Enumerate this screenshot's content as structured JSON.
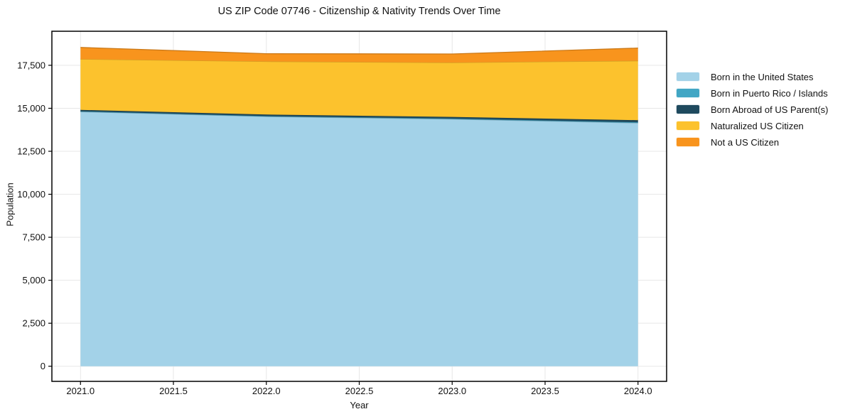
{
  "chart_data": {
    "type": "area",
    "stacked": true,
    "title": "US ZIP Code 07746 - Citizenship & Nativity Trends Over Time",
    "xlabel": "Year",
    "ylabel": "Population",
    "x": [
      2021,
      2022,
      2023,
      2024
    ],
    "series": [
      {
        "name": "Born in the United States",
        "color": "#a3d2e8",
        "values": [
          14800,
          14520,
          14370,
          14150
        ]
      },
      {
        "name": "Born in Puerto Rico / Islands",
        "color": "#41a6c4",
        "values": [
          25,
          25,
          30,
          40
        ]
      },
      {
        "name": "Born Abroad of US Parent(s)",
        "color": "#1f4a5e",
        "values": [
          85,
          90,
          100,
          120
        ]
      },
      {
        "name": "Naturalized US Citizen",
        "color": "#fcc22d",
        "values": [
          2950,
          3090,
          3160,
          3450
        ]
      },
      {
        "name": "Not a US Citizen",
        "color": "#f8941d",
        "values": [
          680,
          450,
          500,
          740
        ]
      }
    ],
    "totals": [
      18540,
      18175,
      18160,
      18500
    ],
    "xlim": [
      2020.846,
      2024.154
    ],
    "ylim": [
      -880,
      19480
    ],
    "x_ticks": [
      "2021.0",
      "2021.5",
      "2022.0",
      "2022.5",
      "2023.0",
      "2023.5",
      "2024.0"
    ],
    "x_tick_values": [
      2021,
      2021.5,
      2022,
      2022.5,
      2023,
      2023.5,
      2024
    ],
    "y_ticks": [
      "0",
      "2,500",
      "5,000",
      "7,500",
      "10,000",
      "12,500",
      "15,000",
      "17,500"
    ],
    "y_tick_values": [
      0,
      2500,
      5000,
      7500,
      10000,
      12500,
      15000,
      17500
    ],
    "grid": true,
    "legend_position": "right-outside",
    "colors": {
      "grid": "#e7e7e7",
      "spine": "#000000",
      "text": "#111111",
      "background": "#ffffff"
    }
  }
}
